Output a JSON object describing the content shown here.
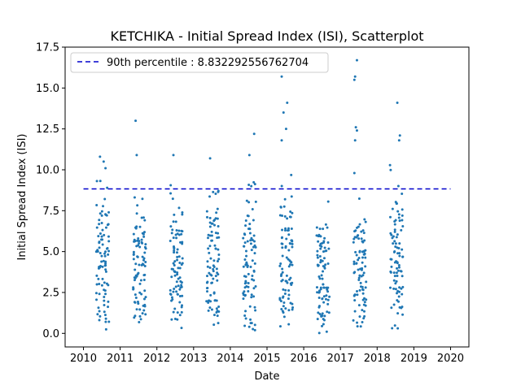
{
  "chart_data": {
    "type": "scatter",
    "title": "KETCHIKA - Initial Spread Index (ISI), Scatterplot",
    "xlabel": "Date",
    "ylabel": "Initial Spread Index (ISI)",
    "xlim": [
      2009.5,
      2020.5
    ],
    "ylim": [
      -0.83,
      17.5
    ],
    "x_ticks": [
      "2010",
      "2011",
      "2012",
      "2013",
      "2014",
      "2015",
      "2016",
      "2017",
      "2018",
      "2019",
      "2020"
    ],
    "y_ticks": [
      "0.0",
      "2.5",
      "5.0",
      "7.5",
      "10.0",
      "12.5",
      "15.0",
      "17.5"
    ],
    "grid": false,
    "legend_position": "upper-left",
    "colors": {
      "points": "#1f77b4",
      "threshold": "#0000cc"
    },
    "threshold": {
      "name": "90th percentile : 8.832292556762704",
      "value": 8.832292556762704,
      "style": "dashed"
    },
    "season_ranges": [
      [
        2010.35,
        2010.7
      ],
      [
        2011.35,
        2011.7
      ],
      [
        2012.35,
        2012.7
      ],
      [
        2013.35,
        2013.7
      ],
      [
        2014.35,
        2014.7
      ],
      [
        2015.35,
        2015.7
      ],
      [
        2016.35,
        2016.7
      ],
      [
        2017.35,
        2017.7
      ],
      [
        2018.35,
        2018.7
      ]
    ],
    "highlight_points": [
      {
        "x": 2010.45,
        "y": 10.8
      },
      {
        "x": 2010.55,
        "y": 10.5
      },
      {
        "x": 2010.6,
        "y": 10.1
      },
      {
        "x": 2011.42,
        "y": 13.0
      },
      {
        "x": 2011.45,
        "y": 10.9
      },
      {
        "x": 2012.45,
        "y": 10.9
      },
      {
        "x": 2013.45,
        "y": 10.7
      },
      {
        "x": 2014.52,
        "y": 10.9
      },
      {
        "x": 2014.65,
        "y": 12.2
      },
      {
        "x": 2015.4,
        "y": 15.7
      },
      {
        "x": 2015.55,
        "y": 14.1
      },
      {
        "x": 2015.45,
        "y": 13.5
      },
      {
        "x": 2015.52,
        "y": 12.5
      },
      {
        "x": 2015.4,
        "y": 11.8
      },
      {
        "x": 2017.45,
        "y": 16.7
      },
      {
        "x": 2017.4,
        "y": 15.7
      },
      {
        "x": 2017.38,
        "y": 15.5
      },
      {
        "x": 2017.42,
        "y": 12.6
      },
      {
        "x": 2017.45,
        "y": 12.4
      },
      {
        "x": 2017.4,
        "y": 11.8
      },
      {
        "x": 2017.38,
        "y": 9.8
      },
      {
        "x": 2018.55,
        "y": 14.1
      },
      {
        "x": 2018.62,
        "y": 12.1
      },
      {
        "x": 2018.6,
        "y": 11.8
      }
    ]
  }
}
